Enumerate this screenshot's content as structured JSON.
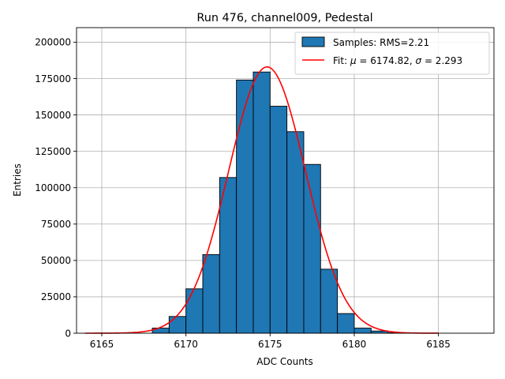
{
  "chart_data": {
    "type": "bar",
    "title": "Run 476, channel009, Pedestal",
    "xlabel": "ADC Counts",
    "ylabel": "Entries",
    "xlim": [
      6163.5,
      6188.3
    ],
    "ylim": [
      0,
      210000
    ],
    "xticks": [
      6165,
      6170,
      6175,
      6180,
      6185
    ],
    "yticks": [
      0,
      25000,
      50000,
      75000,
      100000,
      125000,
      150000,
      175000,
      200000
    ],
    "grid": true,
    "legend_position": "top-right",
    "bin_width": 1,
    "histogram": {
      "name": "Samples: RMS=2.21",
      "color": "#1f77b4",
      "bins": [
        {
          "x0": 6168,
          "value": 3500
        },
        {
          "x0": 6169,
          "value": 11500
        },
        {
          "x0": 6170,
          "value": 30500
        },
        {
          "x0": 6171,
          "value": 54000
        },
        {
          "x0": 6172,
          "value": 107000
        },
        {
          "x0": 6173,
          "value": 174000
        },
        {
          "x0": 6174,
          "value": 179500
        },
        {
          "x0": 6175,
          "value": 156000
        },
        {
          "x0": 6176,
          "value": 138500
        },
        {
          "x0": 6177,
          "value": 116000
        },
        {
          "x0": 6178,
          "value": 44000
        },
        {
          "x0": 6179,
          "value": 13500
        },
        {
          "x0": 6180,
          "value": 3500
        },
        {
          "x0": 6181,
          "value": 1500
        },
        {
          "x0": 6182,
          "value": 300
        }
      ]
    },
    "fit": {
      "name": "Fit: μ = 6174.82, σ = 2.293",
      "name_prefix": "Fit: ",
      "mu_symbol": "μ",
      "mu_text": " = 6174.82, ",
      "sigma_symbol": "σ",
      "sigma_text": " = 2.293",
      "color": "#ff0000",
      "mu": 6174.82,
      "sigma": 2.293,
      "amplitude": 183000,
      "x_range": [
        6164,
        6185
      ]
    }
  }
}
